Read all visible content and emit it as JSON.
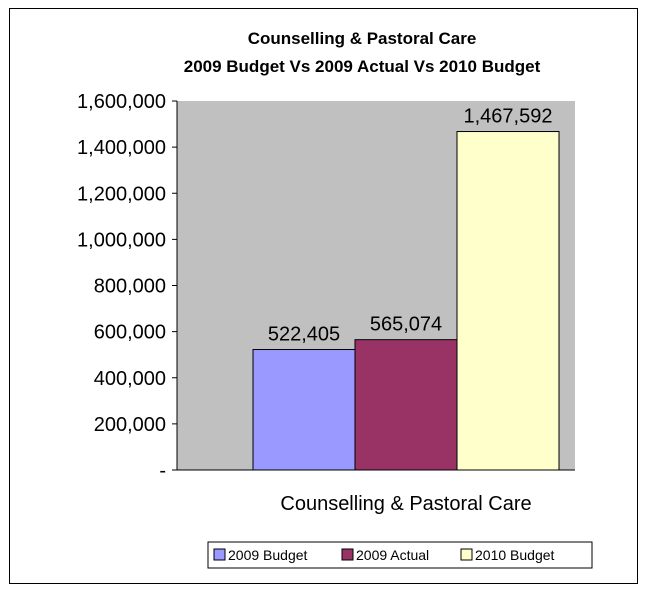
{
  "chart_data": {
    "type": "bar",
    "title": "Counselling & Pastoral Care",
    "subtitle": "2009 Budget Vs 2009 Actual Vs 2010 Budget",
    "xlabel": "",
    "ylabel": "",
    "categories": [
      "Counselling & Pastoral Care"
    ],
    "series": [
      {
        "name": "2009 Budget",
        "values": [
          522405
        ],
        "label": "522,405",
        "color": "#9999ff"
      },
      {
        "name": "2009 Actual",
        "values": [
          565074
        ],
        "label": "565,074",
        "color": "#993366"
      },
      {
        "name": "2010 Budget",
        "values": [
          1467592
        ],
        "label": "1,467,592",
        "color": "#ffffcc"
      }
    ],
    "ylim": [
      0,
      1600000
    ],
    "yticks": [
      0,
      200000,
      400000,
      600000,
      800000,
      1000000,
      1200000,
      1400000,
      1600000
    ],
    "ytick_labels": [
      "-",
      "200,000",
      "400,000",
      "600,000",
      "800,000",
      "1,000,000",
      "1,200,000",
      "1,400,000",
      "1,600,000"
    ],
    "grid": false,
    "plot_background": "#c0c0c0",
    "legend": "bottom"
  }
}
